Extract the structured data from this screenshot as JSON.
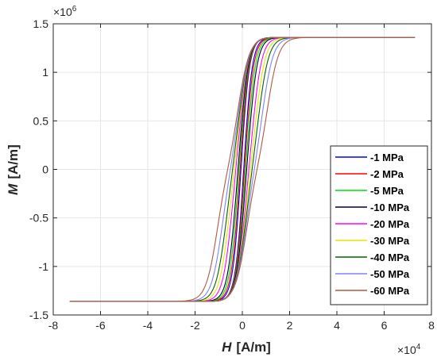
{
  "chart_data": {
    "type": "line",
    "title": "",
    "xlabel_var": "H",
    "xlabel_unit": "[A/m]",
    "ylabel_var": "M",
    "ylabel_unit": "[A/m]",
    "x_exponent_base": "×10",
    "x_exponent_power": "4",
    "y_exponent_base": "×10",
    "y_exponent_power": "6",
    "xlim": [
      -80000,
      80000
    ],
    "ylim": [
      -1500000,
      1500000
    ],
    "xticks": [
      -80000,
      -60000,
      -40000,
      -20000,
      0,
      20000,
      40000,
      60000,
      80000
    ],
    "yticks": [
      -1500000,
      -1000000,
      -500000,
      0,
      500000,
      1000000,
      1500000
    ],
    "xtick_labels": [
      "-8",
      "-6",
      "-4",
      "-2",
      "0",
      "2",
      "4",
      "6",
      "8"
    ],
    "ytick_labels": [
      "-1.5",
      "-1",
      "-0.5",
      "0",
      "0.5",
      "1",
      "1.5"
    ],
    "grid": true,
    "legend_position": "bottom-right",
    "saturation": 1360000,
    "h_range": [
      -73000,
      73000
    ],
    "series": [
      {
        "name": "-1 MPa",
        "color": "#0000ff",
        "switch_field": 1000,
        "width": 3500
      },
      {
        "name": "-2 MPa",
        "color": "#ff0000",
        "switch_field": 1600,
        "width": 3600
      },
      {
        "name": "-5 MPa",
        "color": "#00dd00",
        "switch_field": 2400,
        "width": 3700
      },
      {
        "name": "-10 MPa",
        "color": "#000033",
        "switch_field": 3200,
        "width": 3800
      },
      {
        "name": "-20 MPa",
        "color": "#ff00ff",
        "switch_field": 4800,
        "width": 4000
      },
      {
        "name": "-30 MPa",
        "color": "#e6e600",
        "switch_field": 6000,
        "width": 4200
      },
      {
        "name": "-40 MPa",
        "color": "#006600",
        "switch_field": 7200,
        "width": 4400
      },
      {
        "name": "-50 MPa",
        "color": "#8080ff",
        "switch_field": 8800,
        "width": 4600
      },
      {
        "name": "-60 MPa",
        "color": "#b05a3c",
        "switch_field": 10800,
        "width": 4800
      }
    ]
  }
}
